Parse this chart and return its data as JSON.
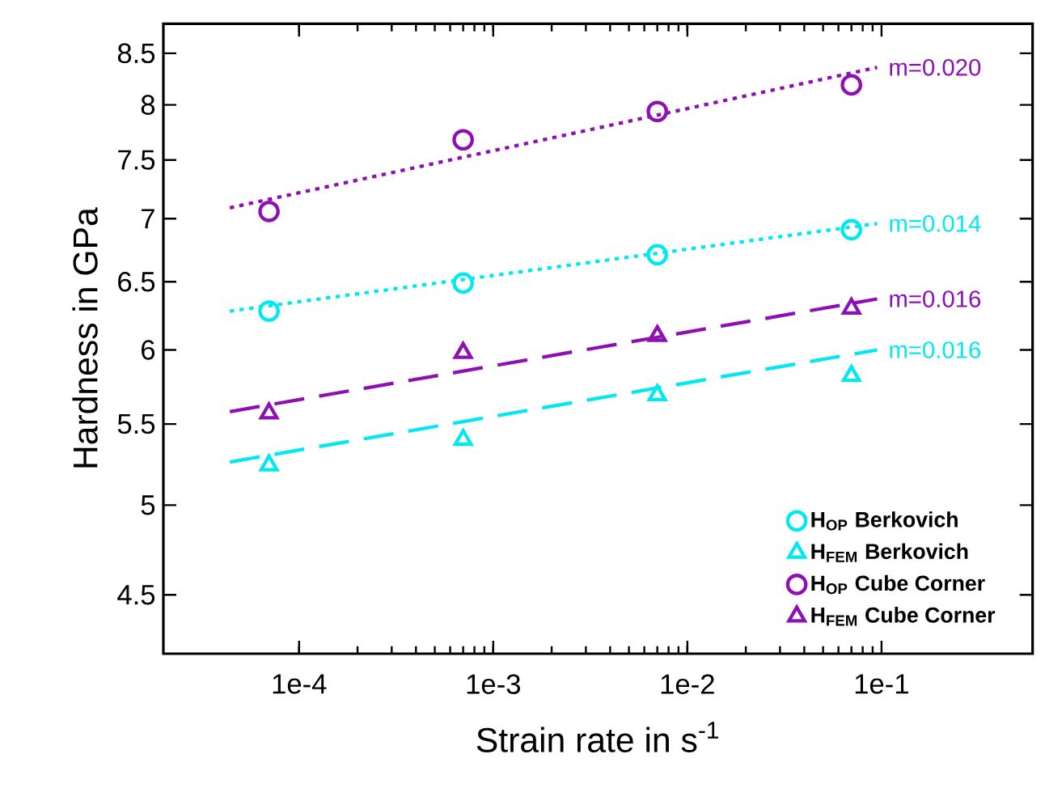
{
  "chart_data": {
    "type": "scatter",
    "xlabel": "Strain rate in s$^{-1}$",
    "ylabel": "Hardness in GPa",
    "log": "xy",
    "xlim": [
      2e-05,
      0.6
    ],
    "ylim": [
      4.2,
      8.8
    ],
    "xticks": [
      {
        "value": 0.0001,
        "label": "1e-4"
      },
      {
        "value": 0.001,
        "label": "1e-3"
      },
      {
        "value": 0.01,
        "label": "1e-2"
      },
      {
        "value": 0.1,
        "label": "1e-1"
      }
    ],
    "yticks": [
      4.5,
      5,
      5.5,
      6,
      6.5,
      7,
      7.5,
      8,
      8.5
    ],
    "legend": "bottom right",
    "series": [
      {
        "name": "H$_{OP}$ Berkovich",
        "marker": "circle",
        "color": "#00e8f0",
        "x": [
          7e-05,
          0.0007,
          0.007,
          0.07
        ],
        "values": [
          6.28,
          6.49,
          6.71,
          6.91
        ]
      },
      {
        "name": "H$_{FEM}$ Berkovich",
        "marker": "triangle",
        "color": "#00e8f0",
        "x": [
          7e-05,
          0.0007,
          0.007,
          0.07
        ],
        "values": [
          5.24,
          5.4,
          5.69,
          5.82
        ]
      },
      {
        "name": "H$_{OP}$ Cube Corner",
        "marker": "circle",
        "color": "#8e10b4",
        "x": [
          7e-05,
          0.0007,
          0.007,
          0.07
        ],
        "values": [
          7.06,
          7.68,
          7.94,
          8.19
        ]
      },
      {
        "name": "H$_{FEM}$ Cube Corner",
        "marker": "triangle",
        "color": "#8e10b4",
        "x": [
          7e-05,
          0.0007,
          0.007,
          0.07
        ],
        "values": [
          5.57,
          5.98,
          6.1,
          6.3
        ]
      },
      {
        "type": "line",
        "line_style": "dotted",
        "color": "#8e10b4",
        "x": [
          4.4e-05,
          0.095
        ],
        "values": [
          7.09,
          8.36
        ]
      },
      {
        "type": "line",
        "line_style": "dotted",
        "color": "#00e8f0",
        "x": [
          4.4e-05,
          0.095
        ],
        "values": [
          6.28,
          6.96
        ]
      },
      {
        "type": "line",
        "line_style": "dashed",
        "color": "#8e10b4",
        "x": [
          4.4e-05,
          0.095
        ],
        "values": [
          5.58,
          6.37
        ]
      },
      {
        "type": "line",
        "line_style": "dashed",
        "color": "#00e8f0",
        "x": [
          4.4e-05,
          0.095
        ],
        "values": [
          5.26,
          6.0
        ]
      }
    ],
    "annotations": [
      "m=0.020",
      "m=0.014",
      "m=0.016",
      "m=0.016"
    ]
  }
}
